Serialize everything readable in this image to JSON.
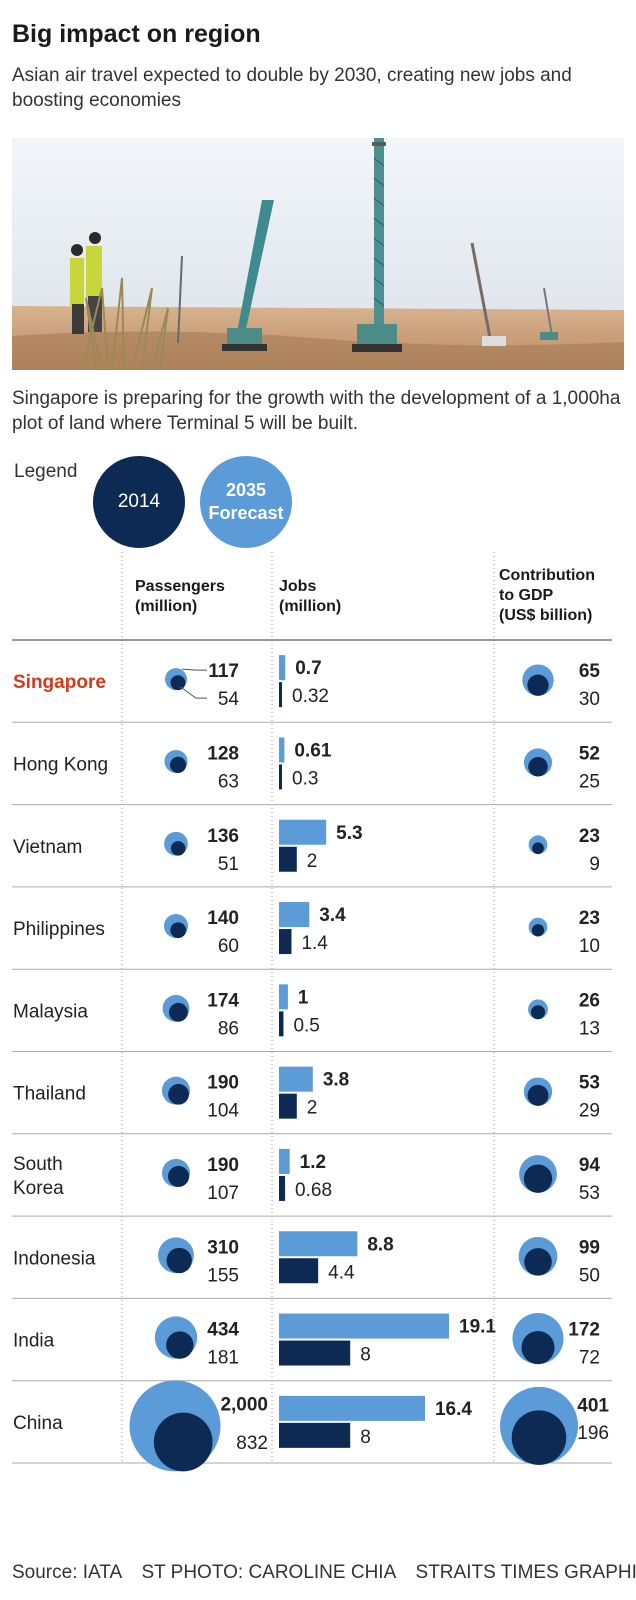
{
  "title": "Big impact on region",
  "subtitle": "Asian air travel expected to double by 2030, creating new jobs and boosting economies",
  "caption": "Singapore is preparing for the growth with the development of a 1,000ha plot of land where Terminal 5 will be built.",
  "legend": {
    "label": "Legend",
    "y2014": "2014",
    "y2035_line1": "2035",
    "y2035_line2": "Forecast"
  },
  "columns": {
    "passengers": [
      "Passengers",
      "(million)"
    ],
    "jobs": [
      "Jobs",
      "(million)"
    ],
    "gdp": [
      "Contribution",
      "to GDP",
      "(US$ billion)"
    ]
  },
  "colors": {
    "y2014": "#0d2a54",
    "y2035": "#5b9bd8",
    "highlight": "#d13b1c"
  },
  "chart_data": {
    "type": "table",
    "title": "Big impact on region",
    "series": [
      "2014",
      "2035 Forecast"
    ],
    "rows": [
      {
        "country": "Singapore",
        "highlight": true,
        "passengers": {
          "v2014": "54",
          "v2035": "117"
        },
        "jobs": {
          "v2014": "0.32",
          "v2035": "0.7"
        },
        "gdp": {
          "v2014": "30",
          "v2035": "65"
        }
      },
      {
        "country": "Hong Kong",
        "passengers": {
          "v2014": "63",
          "v2035": "128"
        },
        "jobs": {
          "v2014": "0.3",
          "v2035": "0.61"
        },
        "gdp": {
          "v2014": "25",
          "v2035": "52"
        }
      },
      {
        "country": "Vietnam",
        "passengers": {
          "v2014": "51",
          "v2035": "136"
        },
        "jobs": {
          "v2014": "2",
          "v2035": "5.3"
        },
        "gdp": {
          "v2014": "9",
          "v2035": "23"
        }
      },
      {
        "country": "Philippines",
        "passengers": {
          "v2014": "60",
          "v2035": "140"
        },
        "jobs": {
          "v2014": "1.4",
          "v2035": "3.4"
        },
        "gdp": {
          "v2014": "10",
          "v2035": "23"
        }
      },
      {
        "country": "Malaysia",
        "passengers": {
          "v2014": "86",
          "v2035": "174"
        },
        "jobs": {
          "v2014": "0.5",
          "v2035": "1"
        },
        "gdp": {
          "v2014": "13",
          "v2035": "26"
        }
      },
      {
        "country": "Thailand",
        "passengers": {
          "v2014": "104",
          "v2035": "190"
        },
        "jobs": {
          "v2014": "2",
          "v2035": "3.8"
        },
        "gdp": {
          "v2014": "29",
          "v2035": "53"
        }
      },
      {
        "country": "South Korea",
        "passengers": {
          "v2014": "107",
          "v2035": "190"
        },
        "jobs": {
          "v2014": "0.68",
          "v2035": "1.2"
        },
        "gdp": {
          "v2014": "53",
          "v2035": "94"
        }
      },
      {
        "country": "Indonesia",
        "passengers": {
          "v2014": "155",
          "v2035": "310"
        },
        "jobs": {
          "v2014": "4.4",
          "v2035": "8.8"
        },
        "gdp": {
          "v2014": "50",
          "v2035": "99"
        }
      },
      {
        "country": "India",
        "passengers": {
          "v2014": "181",
          "v2035": "434"
        },
        "jobs": {
          "v2014": "8",
          "v2035": "19.1"
        },
        "gdp": {
          "v2014": "72",
          "v2035": "172"
        }
      },
      {
        "country": "China",
        "passengers": {
          "v2014": "832",
          "v2035": "2,000"
        },
        "jobs": {
          "v2014": "8",
          "v2035": "16.4"
        },
        "gdp": {
          "v2014": "196",
          "v2035": "401"
        }
      }
    ]
  },
  "source": {
    "data": "Source: IATA",
    "photo": "ST PHOTO: CAROLINE CHIA",
    "graphics": "STRAITS TIMES GRAPHICS"
  }
}
